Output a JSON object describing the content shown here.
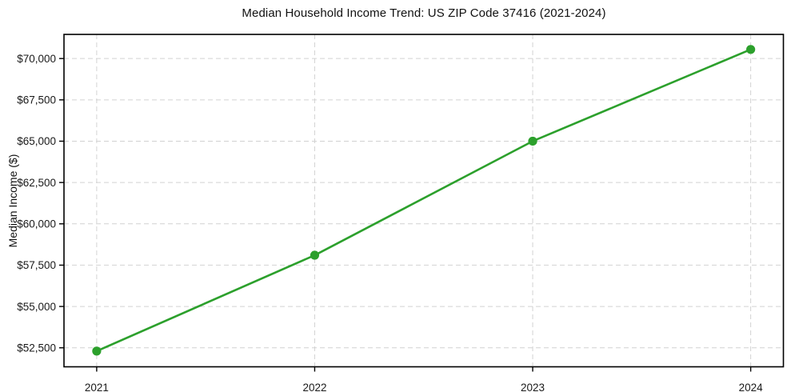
{
  "chart_data": {
    "type": "line",
    "title": "Median Household Income Trend: US ZIP Code 37416 (2021-2024)",
    "xlabel": "",
    "ylabel": "Median Income ($)",
    "x": [
      2021,
      2022,
      2023,
      2024
    ],
    "x_tick_labels": [
      "2021",
      "2022",
      "2023",
      "2024"
    ],
    "series": [
      {
        "name": "Median Household Income",
        "values": [
          52300,
          58100,
          65000,
          70550
        ],
        "color": "#2ca02c"
      }
    ],
    "xlim": [
      2020.85,
      2024.15
    ],
    "ylim": [
      51350,
      71460
    ],
    "y_ticks": [
      52500,
      55000,
      57500,
      60000,
      62500,
      65000,
      67500,
      70000
    ],
    "y_tick_labels": [
      "$52,500",
      "$55,000",
      "$57,500",
      "$60,000",
      "$62,500",
      "$65,000",
      "$67,500",
      "$70,000"
    ],
    "grid": true,
    "grid_line_style": "dashed",
    "grid_color": "#d2d2d2",
    "legend": false,
    "marker": "circle",
    "line_width": 2.6,
    "marker_radius": 5.6,
    "text_color": "#1a1a1a",
    "spine_color": "#000000"
  }
}
